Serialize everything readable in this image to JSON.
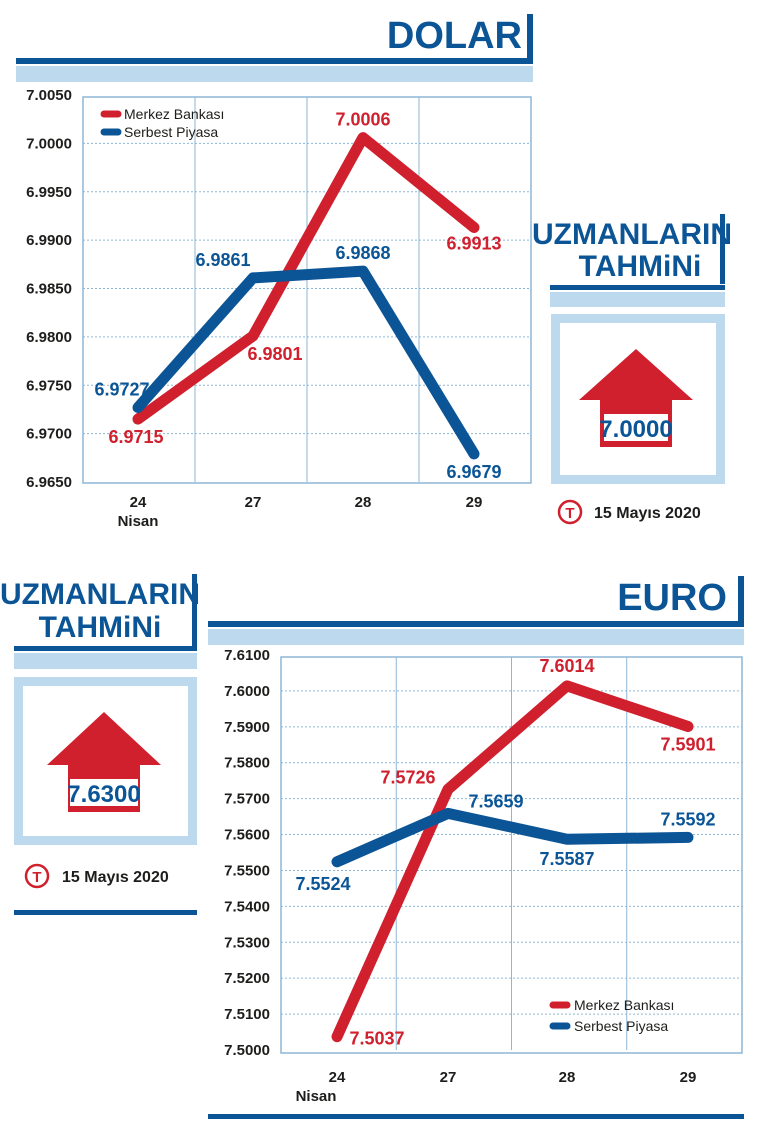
{
  "colors": {
    "red": "#d0202e",
    "blue": "#0b5596",
    "band": "#bcd9ee",
    "grid": "#8db7d6",
    "text": "#1d1d1b"
  },
  "chart_data": [
    {
      "type": "line",
      "title": "DOLAR",
      "categories": [
        "24",
        "27",
        "28",
        "29"
      ],
      "category_sublabel": "Nisan",
      "ylim": [
        6.965,
        7.005
      ],
      "ytick_labels": [
        "7.0050",
        "7.0000",
        "6.9950",
        "6.9900",
        "6.9850",
        "6.9800",
        "6.9750",
        "6.9700",
        "6.9650"
      ],
      "grid": true,
      "legend": "top-left",
      "series": [
        {
          "name": "Merkez Bankası",
          "color": "#d0202e",
          "values": [
            6.9715,
            6.9801,
            7.0006,
            6.9913
          ],
          "labels": [
            "6.9715",
            "6.9801",
            "7.0006",
            "6.9913"
          ]
        },
        {
          "name": "Serbest Piyasa",
          "color": "#0b5596",
          "values": [
            6.9727,
            6.9861,
            6.9868,
            6.9679
          ],
          "labels": [
            "6.9727",
            "6.9861",
            "6.9868",
            "6.9679"
          ]
        }
      ]
    },
    {
      "type": "line",
      "title": "EURO",
      "categories": [
        "24",
        "27",
        "28",
        "29"
      ],
      "category_sublabel": "Nisan",
      "ylim": [
        7.5,
        7.61
      ],
      "ytick_labels": [
        "7.6100",
        "7.6000",
        "7.5900",
        "7.5800",
        "7.5700",
        "7.5600",
        "7.5500",
        "7.5400",
        "7.5300",
        "7.5200",
        "7.5100",
        "7.5000"
      ],
      "grid": true,
      "legend": "bottom-right",
      "series": [
        {
          "name": "Merkez Bankası",
          "color": "#d0202e",
          "values": [
            7.5037,
            7.5726,
            7.6014,
            7.5901
          ],
          "labels": [
            "7.5037",
            "7.5726",
            "7.6014",
            "7.5901"
          ]
        },
        {
          "name": "Serbest Piyasa",
          "color": "#0b5596",
          "values": [
            7.5524,
            7.5659,
            7.5587,
            7.5592
          ],
          "labels": [
            "7.5524",
            "7.5659",
            "7.5587",
            "7.5592"
          ]
        }
      ]
    }
  ],
  "forecasts": [
    {
      "heading_line1": "UZMANLARIN",
      "heading_line2": "TAHMiNi",
      "value": "7.0000",
      "date": "15 Mayıs 2020",
      "logo_letter": "T"
    },
    {
      "heading_line1": "UZMANLARIN",
      "heading_line2": "TAHMiNi",
      "value": "7.6300",
      "date": "15 Mayıs 2020",
      "logo_letter": "T"
    }
  ]
}
